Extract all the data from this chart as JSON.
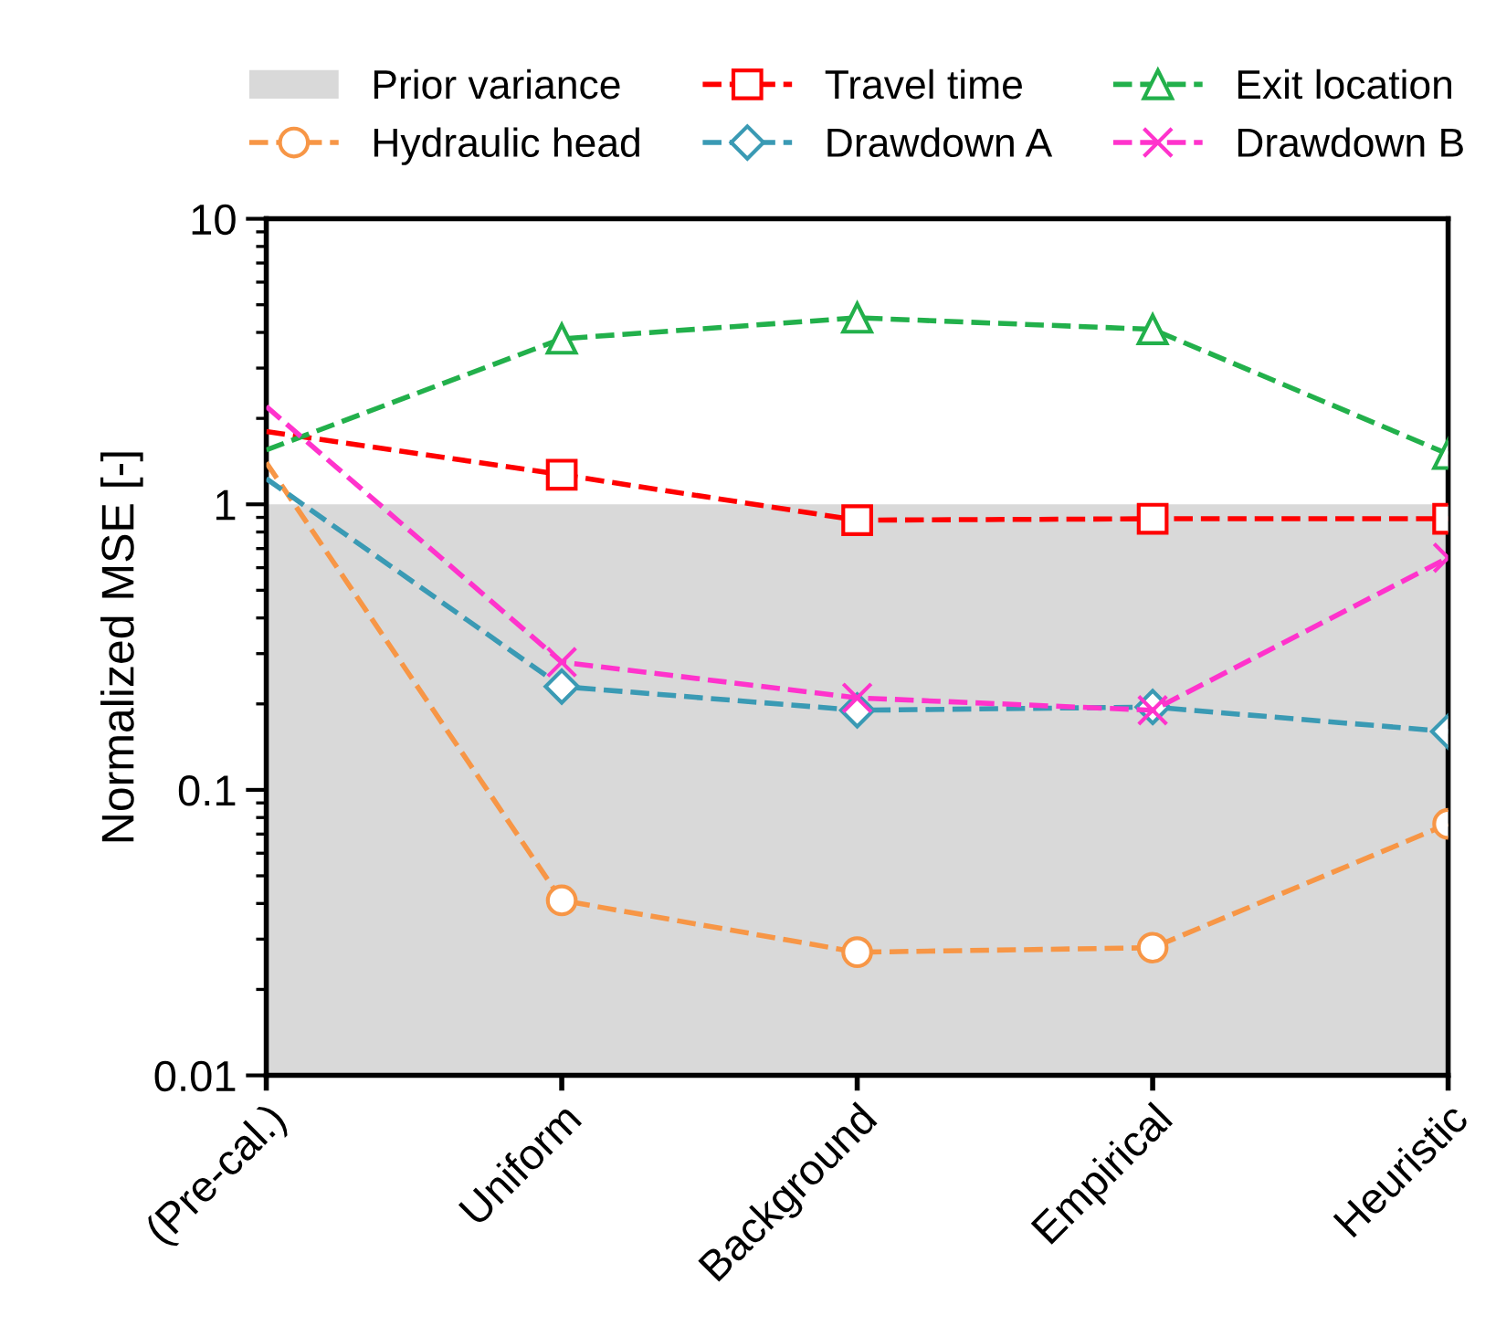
{
  "chart_data": {
    "type": "line",
    "ylabel": "Normalized MSE [-]",
    "categories": [
      "(Pre-cal.)",
      "Uniform",
      "Background",
      "Empirical",
      "Heuristic"
    ],
    "log": true,
    "ylim": [
      0.01,
      10
    ],
    "yticks": [
      0.01,
      0.1,
      1,
      10
    ],
    "grid": false,
    "legend": "top",
    "line_style": "dashed",
    "bands": [
      {
        "axis": "y",
        "from": 0.01,
        "to": 1,
        "label": "Prior variance",
        "color": "#d9d9d9"
      }
    ],
    "series": [
      {
        "name": "Travel time",
        "color": "#ff0000",
        "marker": "square",
        "values": [
          1.8,
          1.27,
          0.88,
          0.89,
          0.89
        ]
      },
      {
        "name": "Exit location",
        "color": "#22b04b",
        "marker": "triangle",
        "values": [
          1.55,
          3.8,
          4.5,
          4.1,
          1.5
        ]
      },
      {
        "name": "Hydraulic head",
        "color": "#f79646",
        "marker": "circle",
        "values": [
          1.4,
          0.041,
          0.027,
          0.028,
          0.076
        ]
      },
      {
        "name": "Drawdown A",
        "color": "#3a9ab4",
        "marker": "diamond",
        "values": [
          1.23,
          0.23,
          0.19,
          0.195,
          0.16
        ]
      },
      {
        "name": "Drawdown B",
        "color": "#ff33cc",
        "marker": "cross",
        "values": [
          2.2,
          0.28,
          0.21,
          0.19,
          0.65
        ]
      }
    ]
  }
}
